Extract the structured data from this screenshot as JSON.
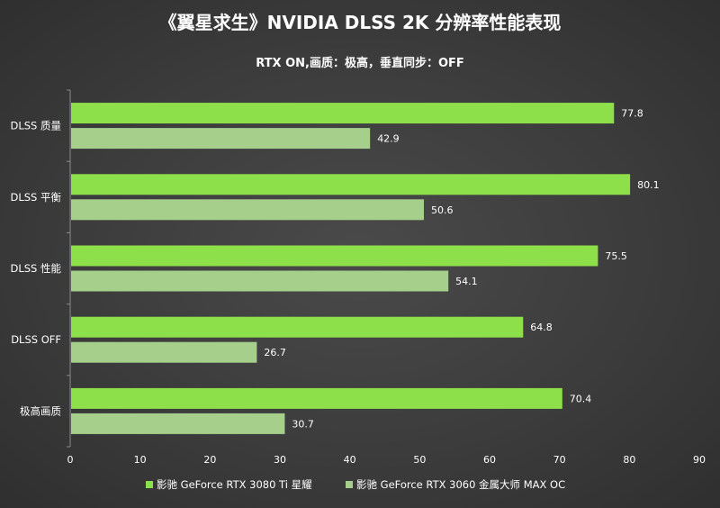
{
  "chart_data": {
    "type": "bar",
    "orientation": "horizontal",
    "title": "《翼星求生》NVIDIA DLSS 2K 分辨率性能表现",
    "subtitle": "RTX ON,画质：极高，垂直同步：OFF",
    "categories": [
      "DLSS 质量",
      "DLSS 平衡",
      "DLSS 性能",
      "DLSS OFF",
      "极高画质"
    ],
    "series": [
      {
        "name": "影驰 GeForce RTX 3080 Ti 星耀",
        "color": "#8ee04a",
        "values": [
          77.8,
          80.1,
          75.5,
          64.8,
          70.4
        ],
        "labels": [
          "77.8",
          "80.1",
          "75.5",
          "64.8",
          "70.4"
        ]
      },
      {
        "name": "影驰 GeForce  RTX 3060 金属大师 MAX OC",
        "color": "#a6cf8c",
        "values": [
          42.9,
          50.6,
          54.1,
          26.7,
          30.7
        ],
        "labels": [
          "42.9",
          "50.6",
          "54.1",
          "26.7",
          "30.7"
        ]
      }
    ],
    "xlim": [
      0,
      90
    ],
    "xticks": [
      0,
      10,
      20,
      30,
      40,
      50,
      60,
      70,
      80,
      90
    ],
    "xtick_labels": [
      "0",
      "10",
      "20",
      "30",
      "40",
      "50",
      "60",
      "70",
      "80",
      "90"
    ],
    "grid": false,
    "legend_position": "bottom",
    "xlabel": "",
    "ylabel": ""
  }
}
